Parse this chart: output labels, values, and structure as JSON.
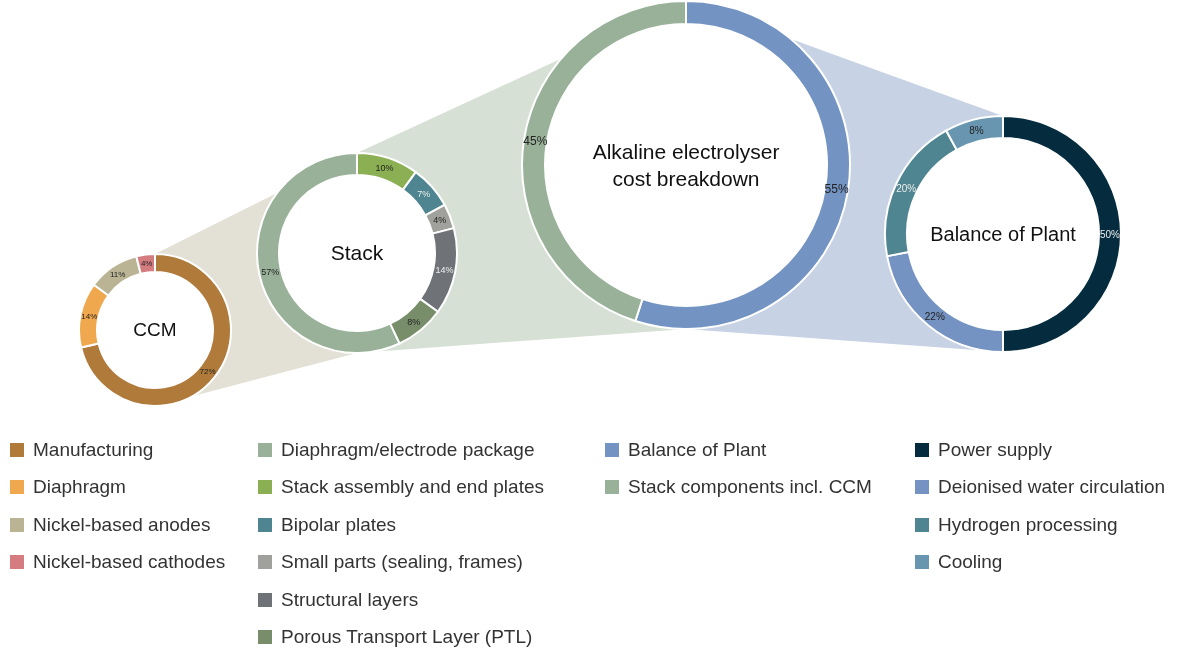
{
  "chart_data": [
    {
      "type": "donut",
      "title": "CCM",
      "categories": [
        "Manufacturing",
        "Diaphragm",
        "Nickel-based anodes",
        "Nickel-based cathodes"
      ],
      "values": [
        72,
        14,
        11,
        4
      ],
      "value_labels": [
        "72%",
        "14%",
        "11%",
        "4%"
      ],
      "colors": [
        "#b07a3a",
        "#f0a84e",
        "#bab494",
        "#d47c80"
      ],
      "legend": "bottom"
    },
    {
      "type": "donut",
      "title": "Stack",
      "categories": [
        "Diaphragm/electrode package",
        "Stack assembly and end plates",
        "Bipolar plates",
        "Small parts (sealing, frames)",
        "Structural layers",
        "Porous Transport Layer (PTL)"
      ],
      "values": [
        57,
        10,
        7,
        4,
        14,
        8
      ],
      "value_labels": [
        "57%",
        "10%",
        "7%",
        "4%",
        "14%",
        "8%"
      ],
      "colors": [
        "#98b198",
        "#8bb053",
        "#4e8590",
        "#a0a19d",
        "#6f7378",
        "#788e6a"
      ],
      "legend": "bottom"
    },
    {
      "type": "donut",
      "title": "Alkaline electrolyser cost breakdown",
      "categories": [
        "Balance of Plant",
        "Stack components incl. CCM"
      ],
      "values": [
        55,
        45
      ],
      "value_labels": [
        "55%",
        "45%"
      ],
      "colors": [
        "#7393c3",
        "#98b198"
      ],
      "legend": "bottom"
    },
    {
      "type": "donut",
      "title": "Balance of Plant",
      "categories": [
        "Power supply",
        "Deionised water circulation",
        "Hydrogen processing",
        "Cooling"
      ],
      "values": [
        50,
        22,
        20,
        8
      ],
      "value_labels": [
        "50%",
        "22%",
        "20%",
        "8%"
      ],
      "colors": [
        "#052c3e",
        "#7492c2",
        "#4e8590",
        "#6896b0"
      ],
      "legend": "bottom"
    }
  ]
}
